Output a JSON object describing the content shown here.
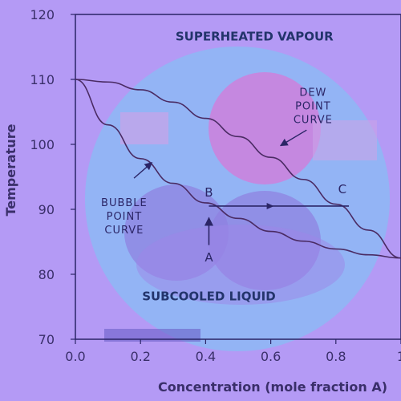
{
  "chart_data": {
    "type": "line",
    "xlabel": "Concentration (mole fraction A)",
    "ylabel": "Temperature",
    "xlim": [
      0,
      1
    ],
    "ylim": [
      70,
      120
    ],
    "x_ticks": [
      "0.0",
      "0.2",
      "0.4",
      "0.6",
      "0.8",
      "1"
    ],
    "y_ticks": [
      "70",
      "80",
      "90",
      "100",
      "110",
      "120"
    ],
    "series": [
      {
        "name": "DEW POINT CURVE",
        "color": "#4a2b63",
        "x": [
          0.0,
          0.1,
          0.2,
          0.3,
          0.4,
          0.5,
          0.6,
          0.7,
          0.8,
          0.9,
          1.0
        ],
        "y": [
          110.0,
          109.6,
          108.4,
          106.5,
          104.0,
          101.2,
          98.0,
          94.6,
          90.8,
          86.8,
          82.5
        ]
      },
      {
        "name": "BUBBLE POINT CURVE",
        "color": "#4a2b63",
        "x": [
          0.0,
          0.1,
          0.2,
          0.3,
          0.4,
          0.5,
          0.6,
          0.7,
          0.8,
          0.9,
          1.0
        ],
        "y": [
          110.0,
          103.0,
          97.8,
          94.0,
          91.0,
          88.6,
          86.6,
          85.1,
          83.9,
          83.0,
          82.5
        ]
      }
    ],
    "regions": [
      {
        "label": "SUPERHEATED VAPOUR",
        "x": 0.55,
        "y": 116
      },
      {
        "label": "SUBCOOLED LIQUID",
        "x": 0.41,
        "y": 76
      }
    ],
    "points": [
      {
        "label": "A",
        "x": 0.41,
        "y": 82
      },
      {
        "label": "B",
        "x": 0.41,
        "y": 92
      },
      {
        "label": "C",
        "x": 0.82,
        "y": 92.5
      }
    ],
    "annotations": [
      {
        "lines": [
          "DEW",
          "POINT",
          "CURVE"
        ],
        "x": 0.73,
        "y": 107.5,
        "arrow_to": [
          0.63,
          99.8
        ]
      },
      {
        "lines": [
          "BUBBLE",
          "POINT",
          "CURVE"
        ],
        "x": 0.15,
        "y": 90.5,
        "arrow_to": [
          0.235,
          97.2
        ]
      }
    ],
    "arrows": [
      {
        "from": [
          0.41,
          84.5
        ],
        "to": [
          0.41,
          88.7
        ]
      },
      {
        "from": [
          0.41,
          90.5
        ],
        "to": [
          0.84,
          90.5
        ]
      }
    ]
  }
}
